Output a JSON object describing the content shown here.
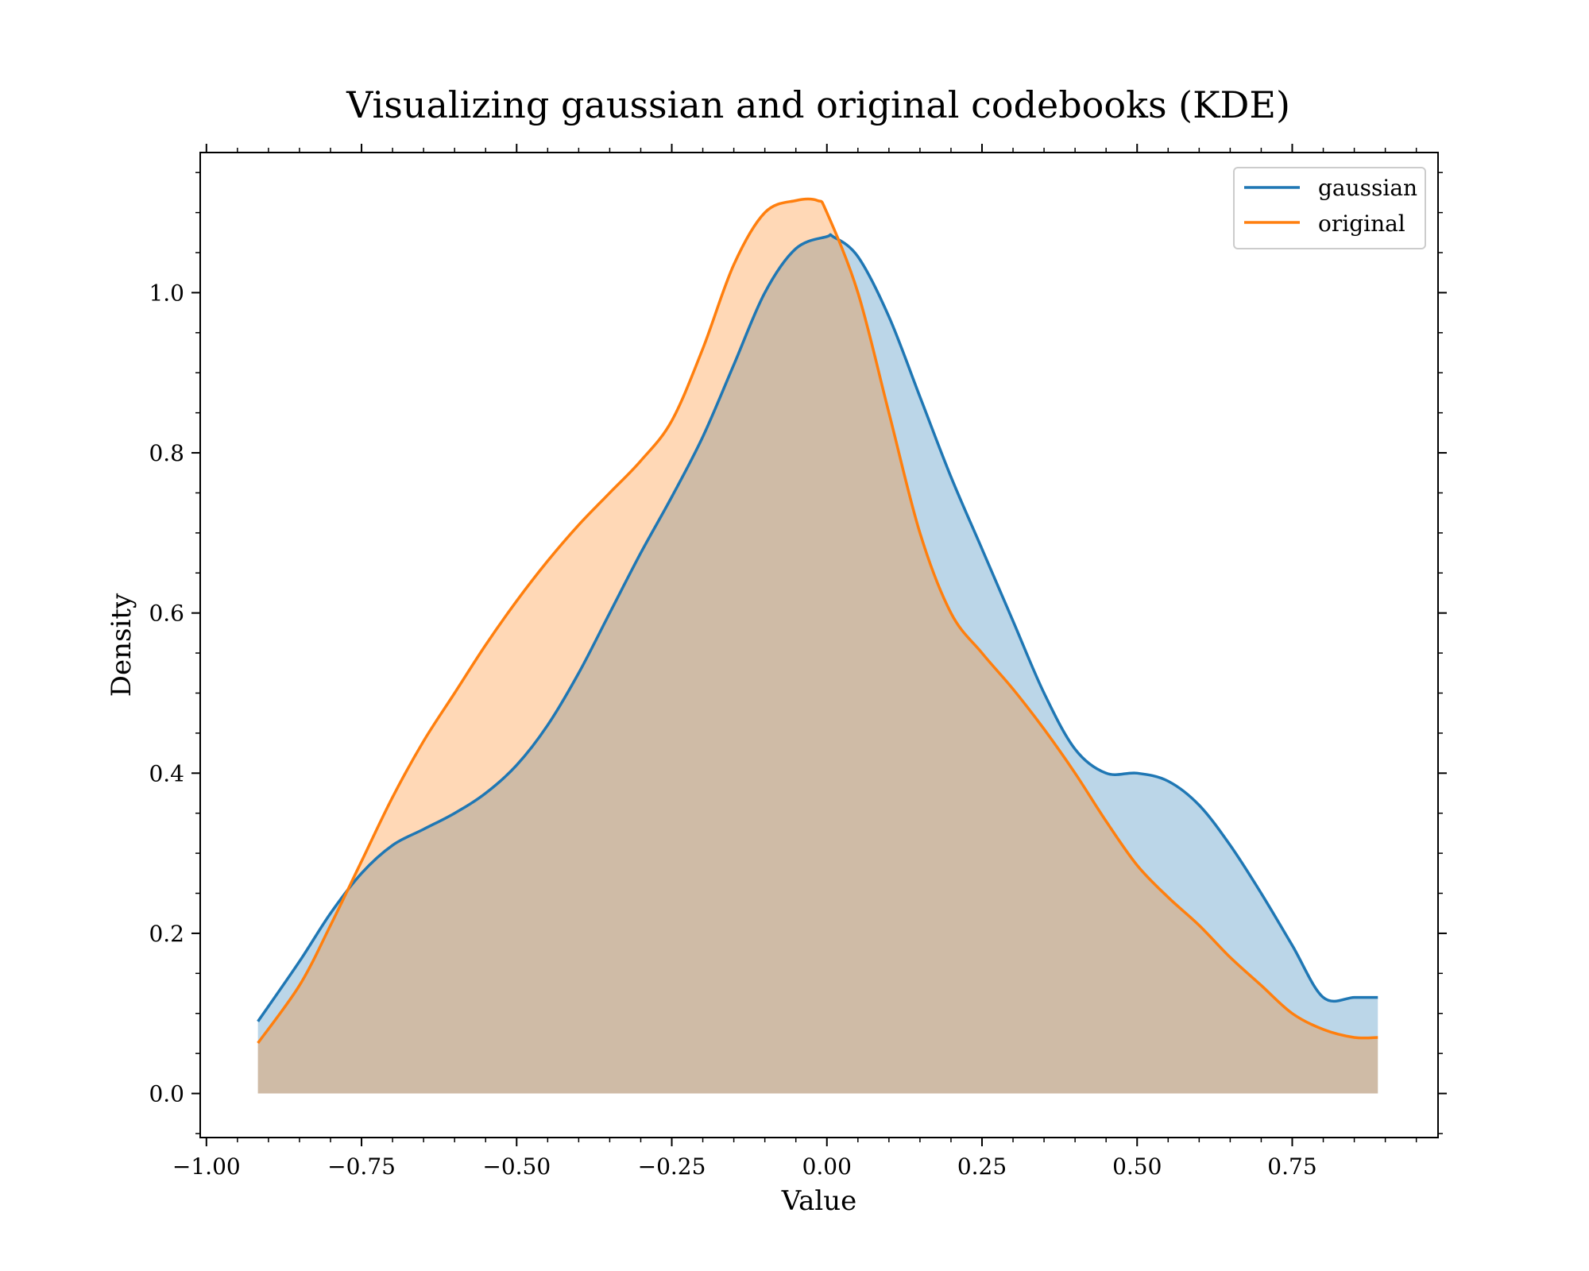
{
  "chart_data": {
    "type": "area",
    "title": "Visualizing gaussian and original codebooks (KDE)",
    "xlabel": "Value",
    "ylabel": "Density",
    "xlim": [
      -1.01,
      0.985
    ],
    "ylim": [
      -0.055,
      1.175
    ],
    "x_ticks": [
      -1.0,
      -0.75,
      -0.5,
      -0.25,
      0.0,
      0.25,
      0.5,
      0.75
    ],
    "x_tick_labels": [
      "−1.00",
      "−0.75",
      "−0.50",
      "−0.25",
      "0.00",
      "0.25",
      "0.50",
      "0.75"
    ],
    "y_ticks": [
      0.0,
      0.2,
      0.4,
      0.6,
      0.8,
      1.0
    ],
    "y_tick_labels": [
      "0.0",
      "0.2",
      "0.4",
      "0.6",
      "0.8",
      "1.0"
    ],
    "legend_position": "top-right",
    "grid": false,
    "series": [
      {
        "name": "gaussian",
        "color": "#1f77b4",
        "fill_opacity": 0.3,
        "x": [
          -0.917,
          -0.85,
          -0.8,
          -0.75,
          -0.7,
          -0.65,
          -0.6,
          -0.55,
          -0.5,
          -0.45,
          -0.4,
          -0.35,
          -0.3,
          -0.25,
          -0.2,
          -0.15,
          -0.1,
          -0.05,
          0.0,
          0.01,
          0.05,
          0.1,
          0.15,
          0.2,
          0.25,
          0.3,
          0.35,
          0.4,
          0.45,
          0.5,
          0.55,
          0.6,
          0.65,
          0.7,
          0.75,
          0.8,
          0.85,
          0.888
        ],
        "y": [
          0.09,
          0.165,
          0.225,
          0.275,
          0.31,
          0.33,
          0.35,
          0.375,
          0.41,
          0.46,
          0.525,
          0.6,
          0.675,
          0.745,
          0.82,
          0.91,
          1.0,
          1.055,
          1.07,
          1.07,
          1.045,
          0.97,
          0.87,
          0.77,
          0.68,
          0.59,
          0.5,
          0.43,
          0.4,
          0.4,
          0.39,
          0.36,
          0.31,
          0.25,
          0.185,
          0.12,
          0.12,
          0.12
        ]
      },
      {
        "name": "original",
        "color": "#ff7f0e",
        "fill_opacity": 0.3,
        "x": [
          -0.917,
          -0.85,
          -0.8,
          -0.75,
          -0.7,
          -0.65,
          -0.6,
          -0.55,
          -0.5,
          -0.45,
          -0.4,
          -0.35,
          -0.3,
          -0.25,
          -0.2,
          -0.15,
          -0.1,
          -0.05,
          -0.015,
          0.0,
          0.05,
          0.1,
          0.15,
          0.2,
          0.25,
          0.3,
          0.35,
          0.4,
          0.45,
          0.5,
          0.55,
          0.6,
          0.65,
          0.7,
          0.75,
          0.8,
          0.85,
          0.888
        ],
        "y": [
          0.063,
          0.135,
          0.21,
          0.29,
          0.37,
          0.44,
          0.5,
          0.56,
          0.615,
          0.665,
          0.71,
          0.75,
          0.79,
          0.84,
          0.93,
          1.035,
          1.1,
          1.115,
          1.115,
          1.1,
          1.0,
          0.85,
          0.7,
          0.6,
          0.55,
          0.505,
          0.455,
          0.4,
          0.34,
          0.285,
          0.245,
          0.21,
          0.17,
          0.135,
          0.1,
          0.08,
          0.07,
          0.07
        ]
      }
    ]
  }
}
